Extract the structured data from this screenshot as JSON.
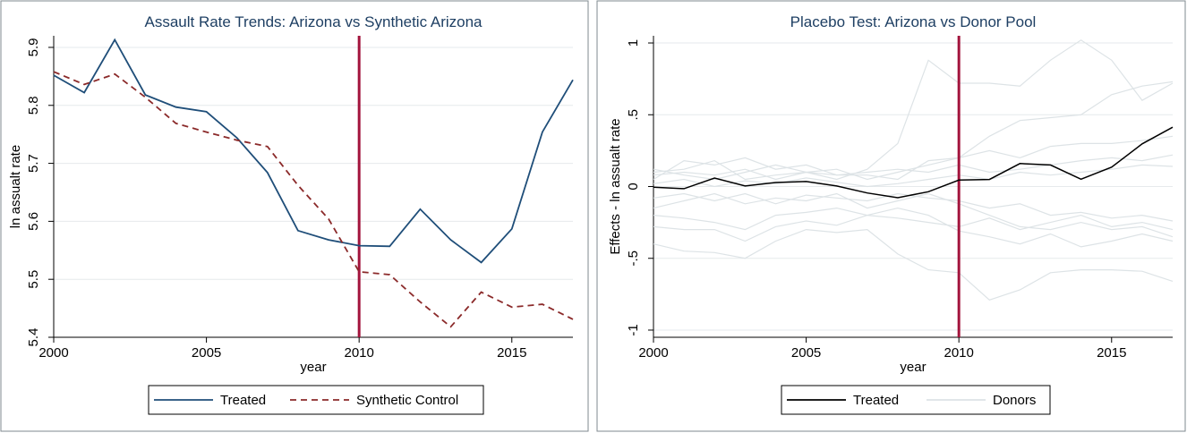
{
  "chart_data": [
    {
      "type": "line",
      "title": "Assault Rate Trends: Arizona vs Synthetic Arizona",
      "xlabel": "year",
      "ylabel": "ln assualt rate",
      "xlim": [
        2000,
        2017
      ],
      "ylim": [
        5.4,
        5.92
      ],
      "xticks": [
        2000,
        2005,
        2010,
        2015
      ],
      "xtick_labels": [
        "2000",
        "2005",
        "2010",
        "2015"
      ],
      "yticks": [
        5.4,
        5.5,
        5.6,
        5.7,
        5.8,
        5.9
      ],
      "ytick_labels": [
        "5.4",
        "5.5",
        "5.6",
        "5.7",
        "5.8",
        "5.9"
      ],
      "grid": true,
      "treatment_line": 2010,
      "legend": {
        "position": "bottom",
        "entries": [
          "Treated",
          "Synthetic Control"
        ]
      },
      "x": [
        2000,
        2001,
        2002,
        2003,
        2004,
        2005,
        2006,
        2007,
        2008,
        2009,
        2010,
        2011,
        2012,
        2013,
        2014,
        2015,
        2016,
        2017
      ],
      "series": [
        {
          "name": "Treated",
          "style": "solid",
          "color": "#1f4e79",
          "values": [
            5.852,
            5.822,
            5.913,
            5.818,
            5.797,
            5.789,
            5.744,
            5.684,
            5.584,
            5.568,
            5.558,
            5.557,
            5.621,
            5.568,
            5.529,
            5.587,
            5.754,
            5.844
          ]
        },
        {
          "name": "Synthetic Control",
          "style": "dashed",
          "color": "#8b2a2a",
          "values": [
            5.858,
            5.836,
            5.854,
            5.814,
            5.769,
            5.754,
            5.74,
            5.729,
            5.662,
            5.604,
            5.513,
            5.508,
            5.461,
            5.418,
            5.478,
            5.452,
            5.457,
            5.431
          ]
        }
      ]
    },
    {
      "type": "line",
      "title": "Placebo Test: Arizona vs Donor Pool",
      "xlabel": "year",
      "ylabel": "Effects - ln assualt rate",
      "xlim": [
        2000,
        2017
      ],
      "ylim": [
        -1.05,
        1.05
      ],
      "xticks": [
        2000,
        2005,
        2010,
        2015
      ],
      "xtick_labels": [
        "2000",
        "2005",
        "2010",
        "2015"
      ],
      "yticks": [
        -1,
        -0.5,
        0,
        0.5,
        1
      ],
      "ytick_labels": [
        "-1",
        "-.5",
        "0",
        ".5",
        "1"
      ],
      "grid": true,
      "treatment_line": 2010,
      "legend": {
        "position": "bottom",
        "entries": [
          "Treated",
          "Donors"
        ]
      },
      "x": [
        2000,
        2001,
        2002,
        2003,
        2004,
        2005,
        2006,
        2007,
        2008,
        2009,
        2010,
        2011,
        2012,
        2013,
        2014,
        2015,
        2016,
        2017
      ],
      "treated": {
        "name": "Treated",
        "color": "#000000",
        "values": [
          -0.005,
          -0.015,
          0.059,
          0.004,
          0.028,
          0.035,
          0.004,
          -0.045,
          -0.078,
          -0.036,
          0.045,
          0.049,
          0.16,
          0.15,
          0.051,
          0.135,
          0.297,
          0.413
        ]
      },
      "donors": {
        "name": "Donors",
        "color": "#dde3e6",
        "lines": [
          [
            -0.4,
            -0.45,
            -0.46,
            -0.5,
            -0.38,
            -0.3,
            -0.32,
            -0.3,
            -0.47,
            -0.58,
            -0.6,
            -0.79,
            -0.72,
            -0.6,
            -0.58,
            -0.58,
            -0.59,
            -0.66
          ],
          [
            -0.28,
            -0.3,
            -0.3,
            -0.38,
            -0.28,
            -0.24,
            -0.27,
            -0.2,
            -0.15,
            -0.2,
            -0.31,
            -0.35,
            -0.4,
            -0.33,
            -0.42,
            -0.38,
            -0.33,
            -0.38
          ],
          [
            0.1,
            0.12,
            0.18,
            0.05,
            0.08,
            0.1,
            0.05,
            0.12,
            0.3,
            0.88,
            0.72,
            0.72,
            0.7,
            0.88,
            1.02,
            0.88,
            0.6,
            0.72
          ],
          [
            0.05,
            0.18,
            0.15,
            0.2,
            0.12,
            0.15,
            0.08,
            0.08,
            0.05,
            0.18,
            0.2,
            0.35,
            0.46,
            0.48,
            0.5,
            0.64,
            0.7,
            0.73
          ],
          [
            -0.15,
            -0.1,
            -0.05,
            -0.12,
            -0.08,
            -0.1,
            -0.05,
            -0.15,
            -0.1,
            -0.05,
            -0.12,
            -0.2,
            -0.28,
            -0.3,
            -0.25,
            -0.3,
            -0.28,
            -0.35
          ],
          [
            0.12,
            0.08,
            0.05,
            0.1,
            0.15,
            0.1,
            0.12,
            0.05,
            0.1,
            0.15,
            0.2,
            0.25,
            0.2,
            0.28,
            0.3,
            0.3,
            0.32,
            0.35
          ],
          [
            -0.08,
            -0.05,
            -0.1,
            -0.05,
            -0.12,
            -0.06,
            -0.08,
            -0.1,
            -0.05,
            -0.08,
            -0.1,
            -0.15,
            -0.12,
            -0.2,
            -0.18,
            -0.22,
            -0.2,
            -0.24
          ],
          [
            0.08,
            0.1,
            0.08,
            0.12,
            0.05,
            0.1,
            0.08,
            0.1,
            0.12,
            0.1,
            0.15,
            0.1,
            0.12,
            0.15,
            0.18,
            0.2,
            0.18,
            0.22
          ],
          [
            -0.2,
            -0.22,
            -0.25,
            -0.3,
            -0.2,
            -0.18,
            -0.15,
            -0.2,
            -0.22,
            -0.25,
            -0.28,
            -0.22,
            -0.3,
            -0.25,
            -0.2,
            -0.28,
            -0.25,
            -0.3
          ],
          [
            0.02,
            0.05,
            0.0,
            0.04,
            0.02,
            0.06,
            0.03,
            0.0,
            0.02,
            0.05,
            0.08,
            0.05,
            0.1,
            0.08,
            0.1,
            0.12,
            0.15,
            0.14
          ]
        ]
      }
    }
  ]
}
